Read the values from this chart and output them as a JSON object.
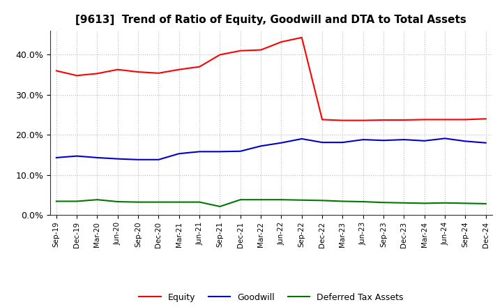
{
  "title": "[9613]  Trend of Ratio of Equity, Goodwill and DTA to Total Assets",
  "x_labels": [
    "Sep-19",
    "Dec-19",
    "Mar-20",
    "Jun-20",
    "Sep-20",
    "Dec-20",
    "Mar-21",
    "Jun-21",
    "Sep-21",
    "Dec-21",
    "Mar-22",
    "Jun-22",
    "Sep-22",
    "Dec-22",
    "Mar-23",
    "Jun-23",
    "Sep-23",
    "Dec-23",
    "Mar-24",
    "Jun-24",
    "Sep-24",
    "Dec-24"
  ],
  "equity": [
    0.36,
    0.348,
    0.353,
    0.363,
    0.357,
    0.354,
    0.363,
    0.37,
    0.4,
    0.41,
    0.412,
    0.432,
    0.443,
    0.238,
    0.236,
    0.236,
    0.237,
    0.237,
    0.238,
    0.238,
    0.238,
    0.24
  ],
  "goodwill": [
    0.143,
    0.147,
    0.143,
    0.14,
    0.138,
    0.138,
    0.153,
    0.158,
    0.158,
    0.159,
    0.172,
    0.18,
    0.19,
    0.181,
    0.181,
    0.188,
    0.186,
    0.188,
    0.185,
    0.191,
    0.184,
    0.18
  ],
  "dta": [
    0.034,
    0.034,
    0.038,
    0.033,
    0.032,
    0.032,
    0.032,
    0.032,
    0.021,
    0.038,
    0.038,
    0.038,
    0.037,
    0.036,
    0.034,
    0.033,
    0.031,
    0.03,
    0.029,
    0.03,
    0.029,
    0.028
  ],
  "equity_color": "#FF0000",
  "goodwill_color": "#0000CC",
  "dta_color": "#007700",
  "ylim": [
    0.0,
    0.46
  ],
  "yticks": [
    0.0,
    0.1,
    0.2,
    0.3,
    0.4
  ],
  "background_color": "#FFFFFF",
  "plot_bg_color": "#FFFFFF",
  "grid_color": "#BBBBBB",
  "title_fontsize": 11,
  "legend_labels": [
    "Equity",
    "Goodwill",
    "Deferred Tax Assets"
  ]
}
